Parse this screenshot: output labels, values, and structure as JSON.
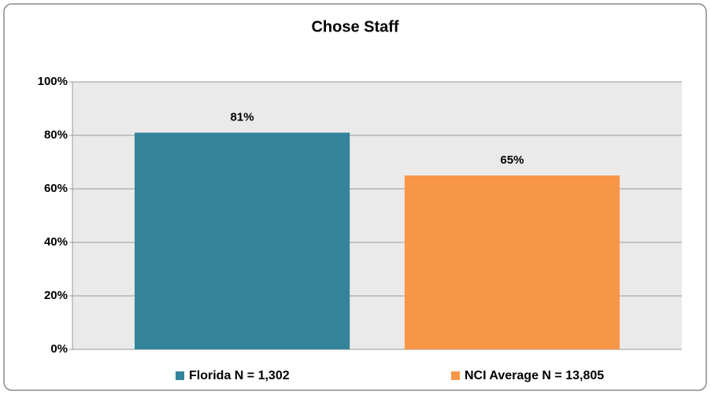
{
  "chart_data": {
    "type": "bar",
    "title": "Chose Staff",
    "categories": [
      null
    ],
    "series": [
      {
        "name": "Florida N = 1,302",
        "color": "#33849b",
        "values": [
          81
        ],
        "value_labels": [
          "81%"
        ]
      },
      {
        "name": "NCI Average N = 13,805",
        "color": "#f79646",
        "values": [
          65
        ],
        "value_labels": [
          "65%"
        ]
      }
    ],
    "ylim": [
      0,
      100
    ],
    "yticks": [
      {
        "value": 0,
        "label": "0%"
      },
      {
        "value": 20,
        "label": "20%"
      },
      {
        "value": 40,
        "label": "40%"
      },
      {
        "value": 60,
        "label": "60%"
      },
      {
        "value": 80,
        "label": "80%"
      },
      {
        "value": 100,
        "label": "100%"
      }
    ],
    "grid": true,
    "legend": "bottom"
  }
}
